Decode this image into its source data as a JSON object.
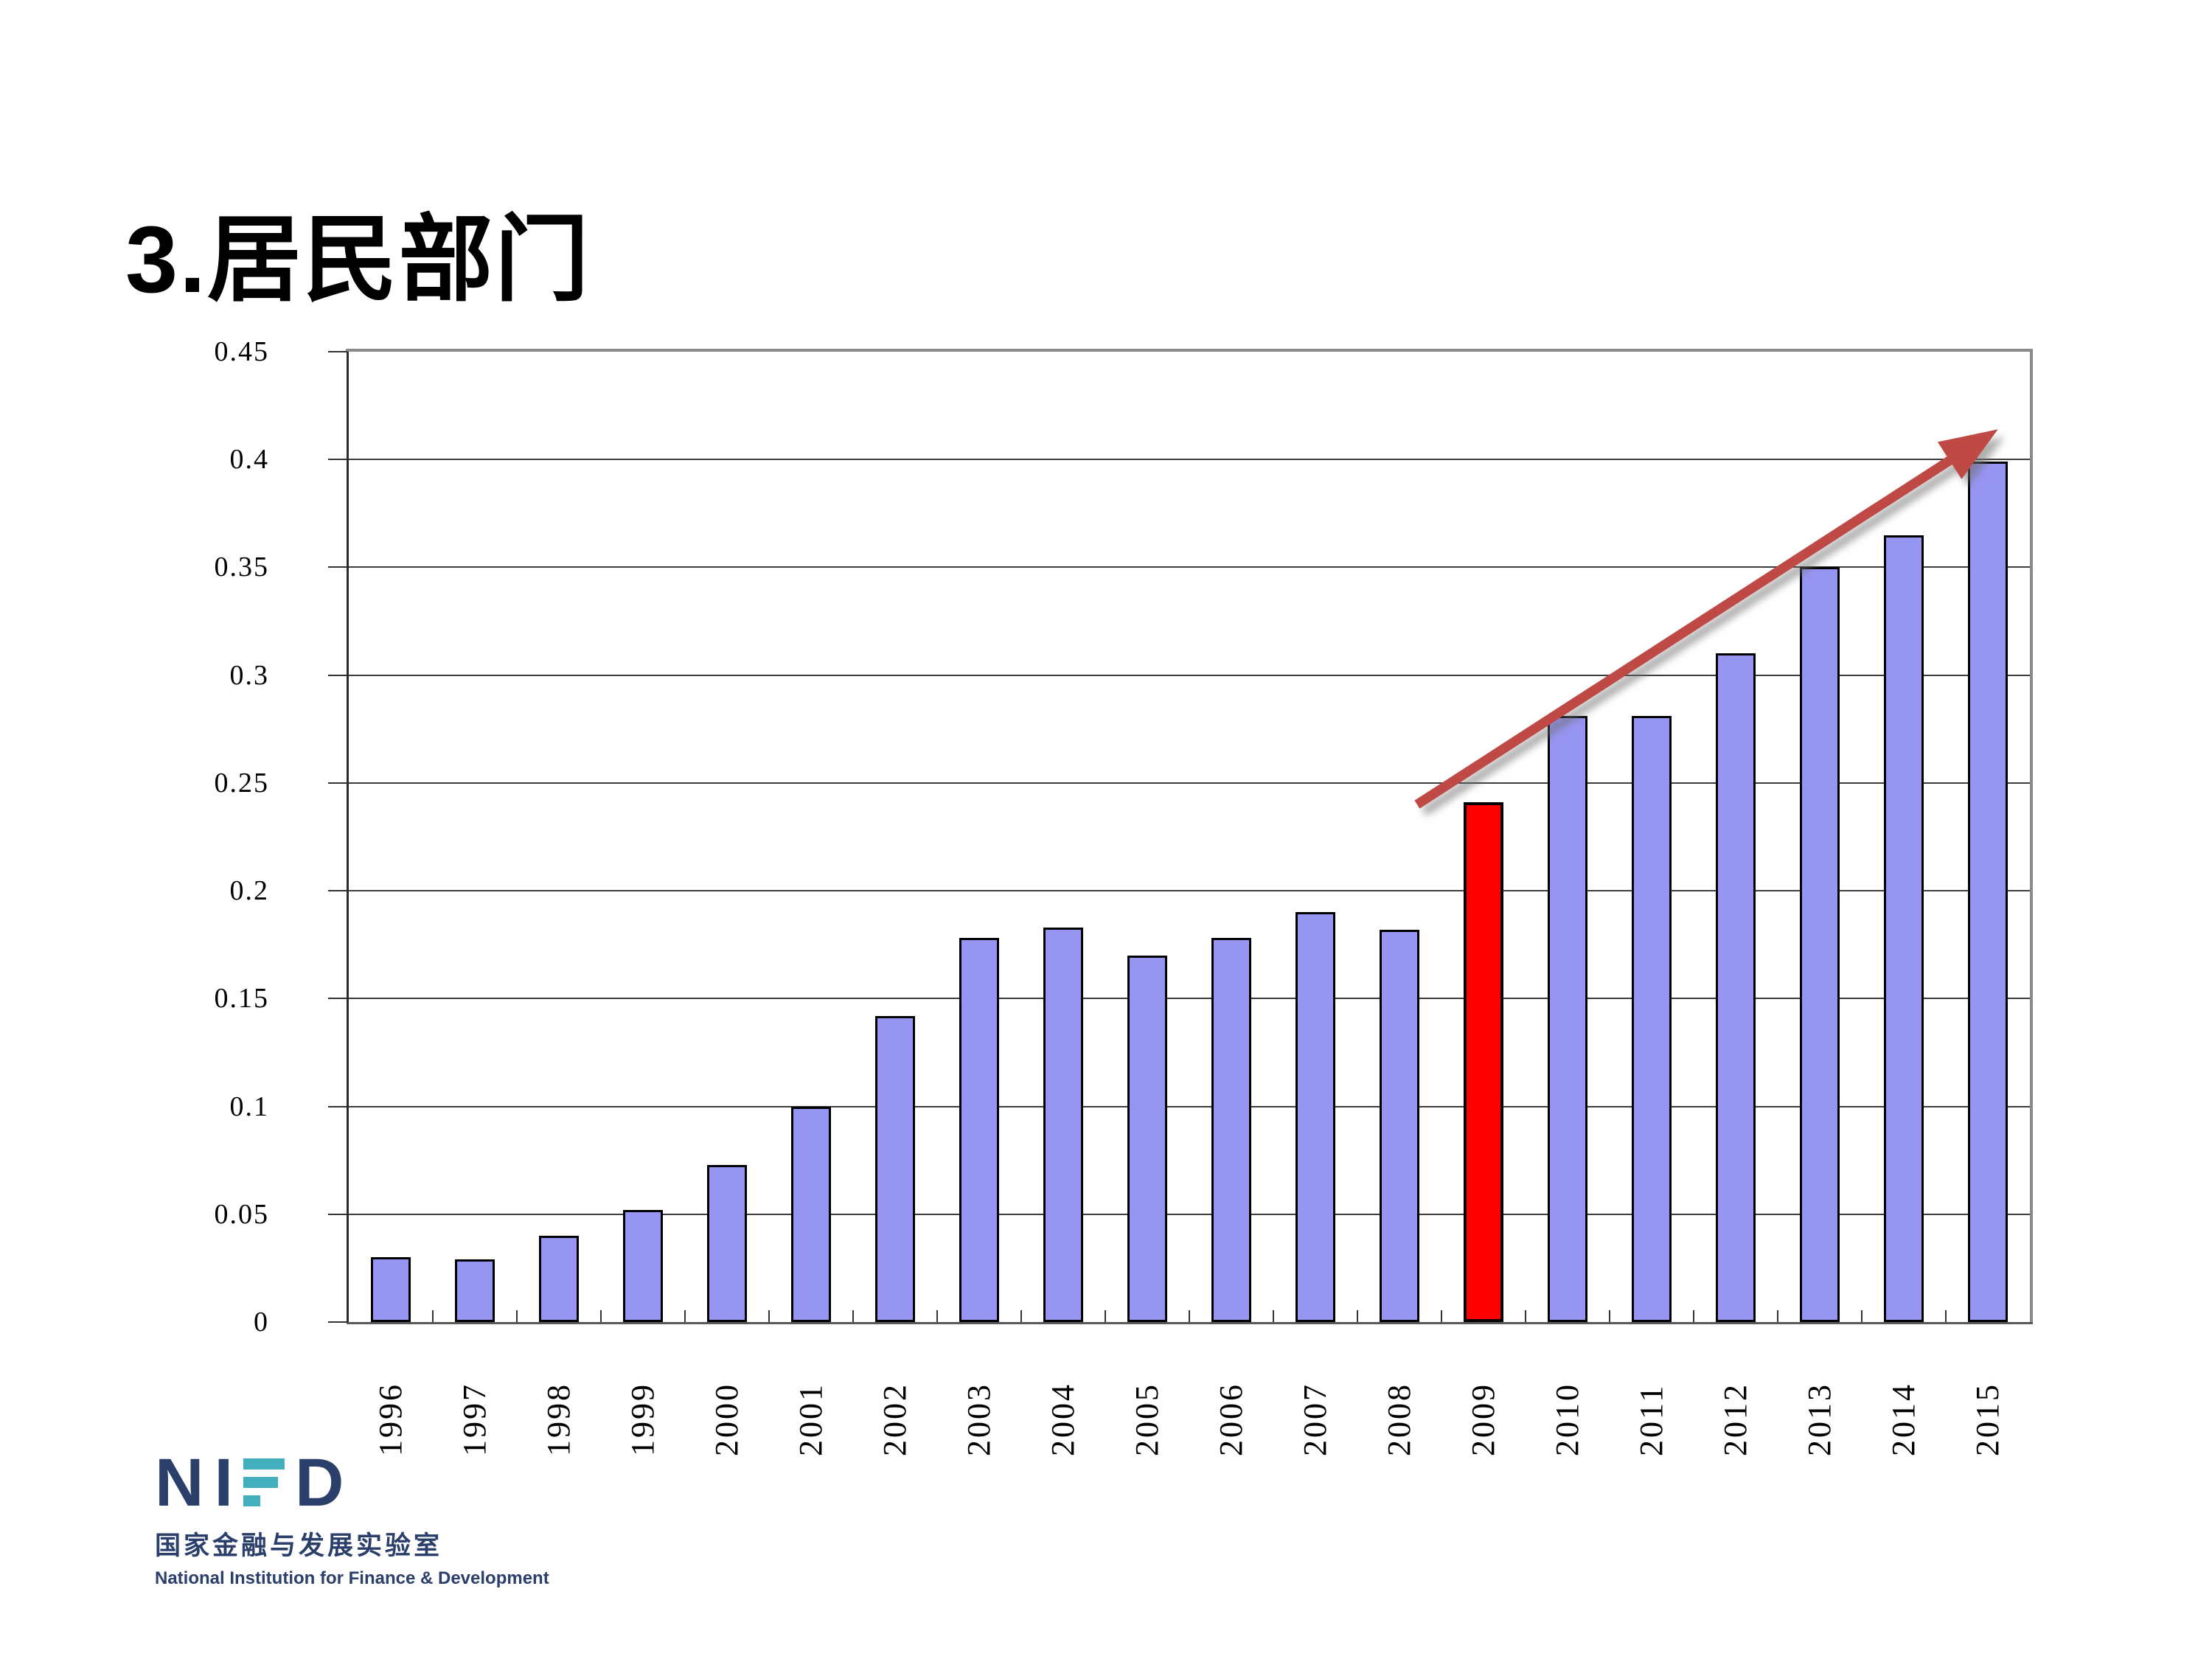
{
  "slide": {
    "title": "3.居民部门",
    "background": "#ffffff"
  },
  "chart_data": {
    "type": "bar",
    "title": "",
    "xlabel": "",
    "ylabel": "",
    "categories": [
      "1996",
      "1997",
      "1998",
      "1999",
      "2000",
      "2001",
      "2002",
      "2003",
      "2004",
      "2005",
      "2006",
      "2007",
      "2008",
      "2009",
      "2010",
      "2011",
      "2012",
      "2013",
      "2014",
      "2015"
    ],
    "values": [
      0.03,
      0.029,
      0.04,
      0.052,
      0.073,
      0.1,
      0.142,
      0.178,
      0.183,
      0.17,
      0.178,
      0.19,
      0.182,
      0.241,
      0.281,
      0.281,
      0.31,
      0.35,
      0.365,
      0.399
    ],
    "highlight_index": 13,
    "ylim": [
      0,
      0.45
    ],
    "yticks": [
      0,
      0.05,
      0.1,
      0.15,
      0.2,
      0.25,
      0.3,
      0.35,
      0.4,
      0.45
    ],
    "ytick_labels": [
      "0",
      "0.05",
      "0.1",
      "0.15",
      "0.2",
      "0.25",
      "0.3",
      "0.35",
      "0.4",
      "0.45"
    ],
    "grid": true,
    "legend_position": "none",
    "colors": {
      "bar_fill": "#9795F2",
      "bar_border": "#000000",
      "highlight_fill": "#FE0000",
      "grid": "#3d3d3d",
      "arrow": "#BE4945"
    },
    "annotation_arrow": {
      "x1_frac": 0.6355,
      "y1_value": 0.24,
      "x2_frac": 0.981,
      "y2_value": 0.414
    }
  },
  "logo": {
    "n": "N",
    "i": "I",
    "d": "D",
    "cn": "国家金融与发展实验室",
    "en": "National Institution for Finance & Development",
    "navy": "#2B3F6B",
    "teal": "#43AEBC"
  }
}
